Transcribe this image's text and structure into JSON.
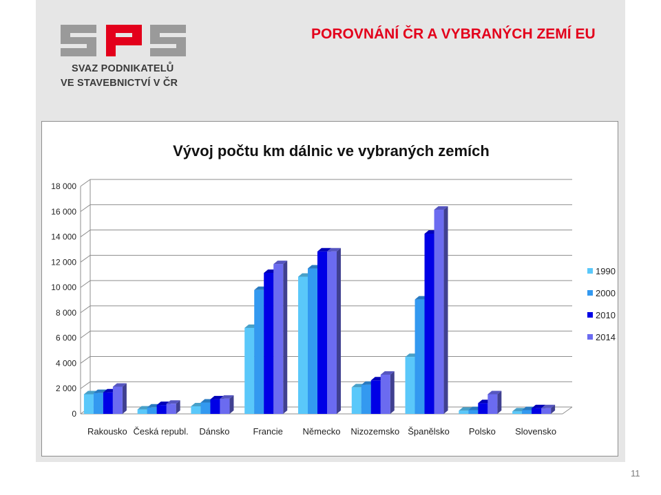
{
  "header": {
    "logo_text": "SPS",
    "logo_line1": "SVAZ PODNIKATELŮ",
    "logo_line2": "VE STAVEBNICTVÍ V ČR",
    "slide_title": "POROVNÁNÍ ČR A VYBRANÝCH ZEMÍ EU"
  },
  "page_number": "11",
  "colors": {
    "title_red": "#e3001b",
    "series": [
      "#5ac8fa",
      "#3399f0",
      "#0000e6",
      "#6b6bf0"
    ],
    "logo_gray": "#9a9a9a",
    "logo_red": "#e3001b"
  },
  "chart_data": {
    "type": "bar",
    "title": "Vývoj počtu km dálnic ve vybraných zemích",
    "xlabel": "",
    "ylabel": "",
    "ylim": [
      0,
      18000
    ],
    "yticks": [
      0,
      2000,
      4000,
      6000,
      8000,
      10000,
      12000,
      14000,
      16000,
      18000
    ],
    "ytick_labels": [
      "0",
      "2 000",
      "4 000",
      "6 000",
      "8 000",
      "10 000",
      "12 000",
      "14 000",
      "16 000",
      "18 000"
    ],
    "grid": true,
    "legend_position": "right",
    "categories": [
      "Rakousko",
      "Česká republ.",
      "Dánsko",
      "Francie",
      "Německo",
      "Nizozemsko",
      "Španělsko",
      "Polsko",
      "Slovensko"
    ],
    "series": [
      {
        "name": "1990",
        "values": [
          1550,
          350,
          600,
          6800,
          10850,
          2100,
          4500,
          250,
          200
        ]
      },
      {
        "name": "2000",
        "values": [
          1650,
          500,
          900,
          9800,
          11500,
          2300,
          9050,
          300,
          300
        ]
      },
      {
        "name": "2010",
        "values": [
          1700,
          700,
          1150,
          11150,
          12850,
          2650,
          14250,
          850,
          450
        ]
      },
      {
        "name": "2014",
        "values": [
          2150,
          800,
          1200,
          11850,
          12850,
          3100,
          16150,
          1550,
          450
        ]
      }
    ]
  }
}
